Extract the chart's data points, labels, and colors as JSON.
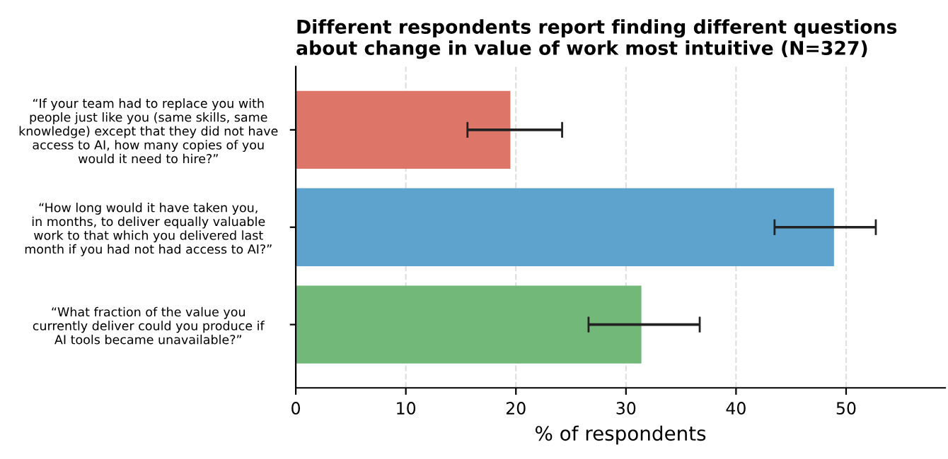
{
  "chart_data": {
    "type": "bar",
    "orientation": "horizontal",
    "title": "Different respondents report finding different questions\nabout change in value of work most intuitive (N=327)",
    "xlabel": "% of respondents",
    "categories": [
      "“If your team had to replace you with\npeople just like you (same skills, same\nknowledge) except that they did not have\naccess to AI, how many copies of you\nwould it need to hire?”",
      "“How long would it have taken you,\nin months, to deliver equally valuable\nwork to that which you delivered last\nmonth if you had not had access to AI?”",
      "“What fraction of the value you\ncurrently deliver could you produce if\nAI tools became unavailable?”"
    ],
    "values": [
      19.5,
      48.9,
      31.4
    ],
    "colors": [
      "#dd7668",
      "#5ea3cd",
      "#72b979"
    ],
    "errors": [
      [
        15.6,
        24.2
      ],
      [
        43.5,
        52.7
      ],
      [
        26.6,
        36.7
      ]
    ],
    "xlim": [
      0,
      59
    ],
    "xticks": [
      0,
      10,
      20,
      30,
      40,
      50
    ],
    "grid": "x"
  }
}
